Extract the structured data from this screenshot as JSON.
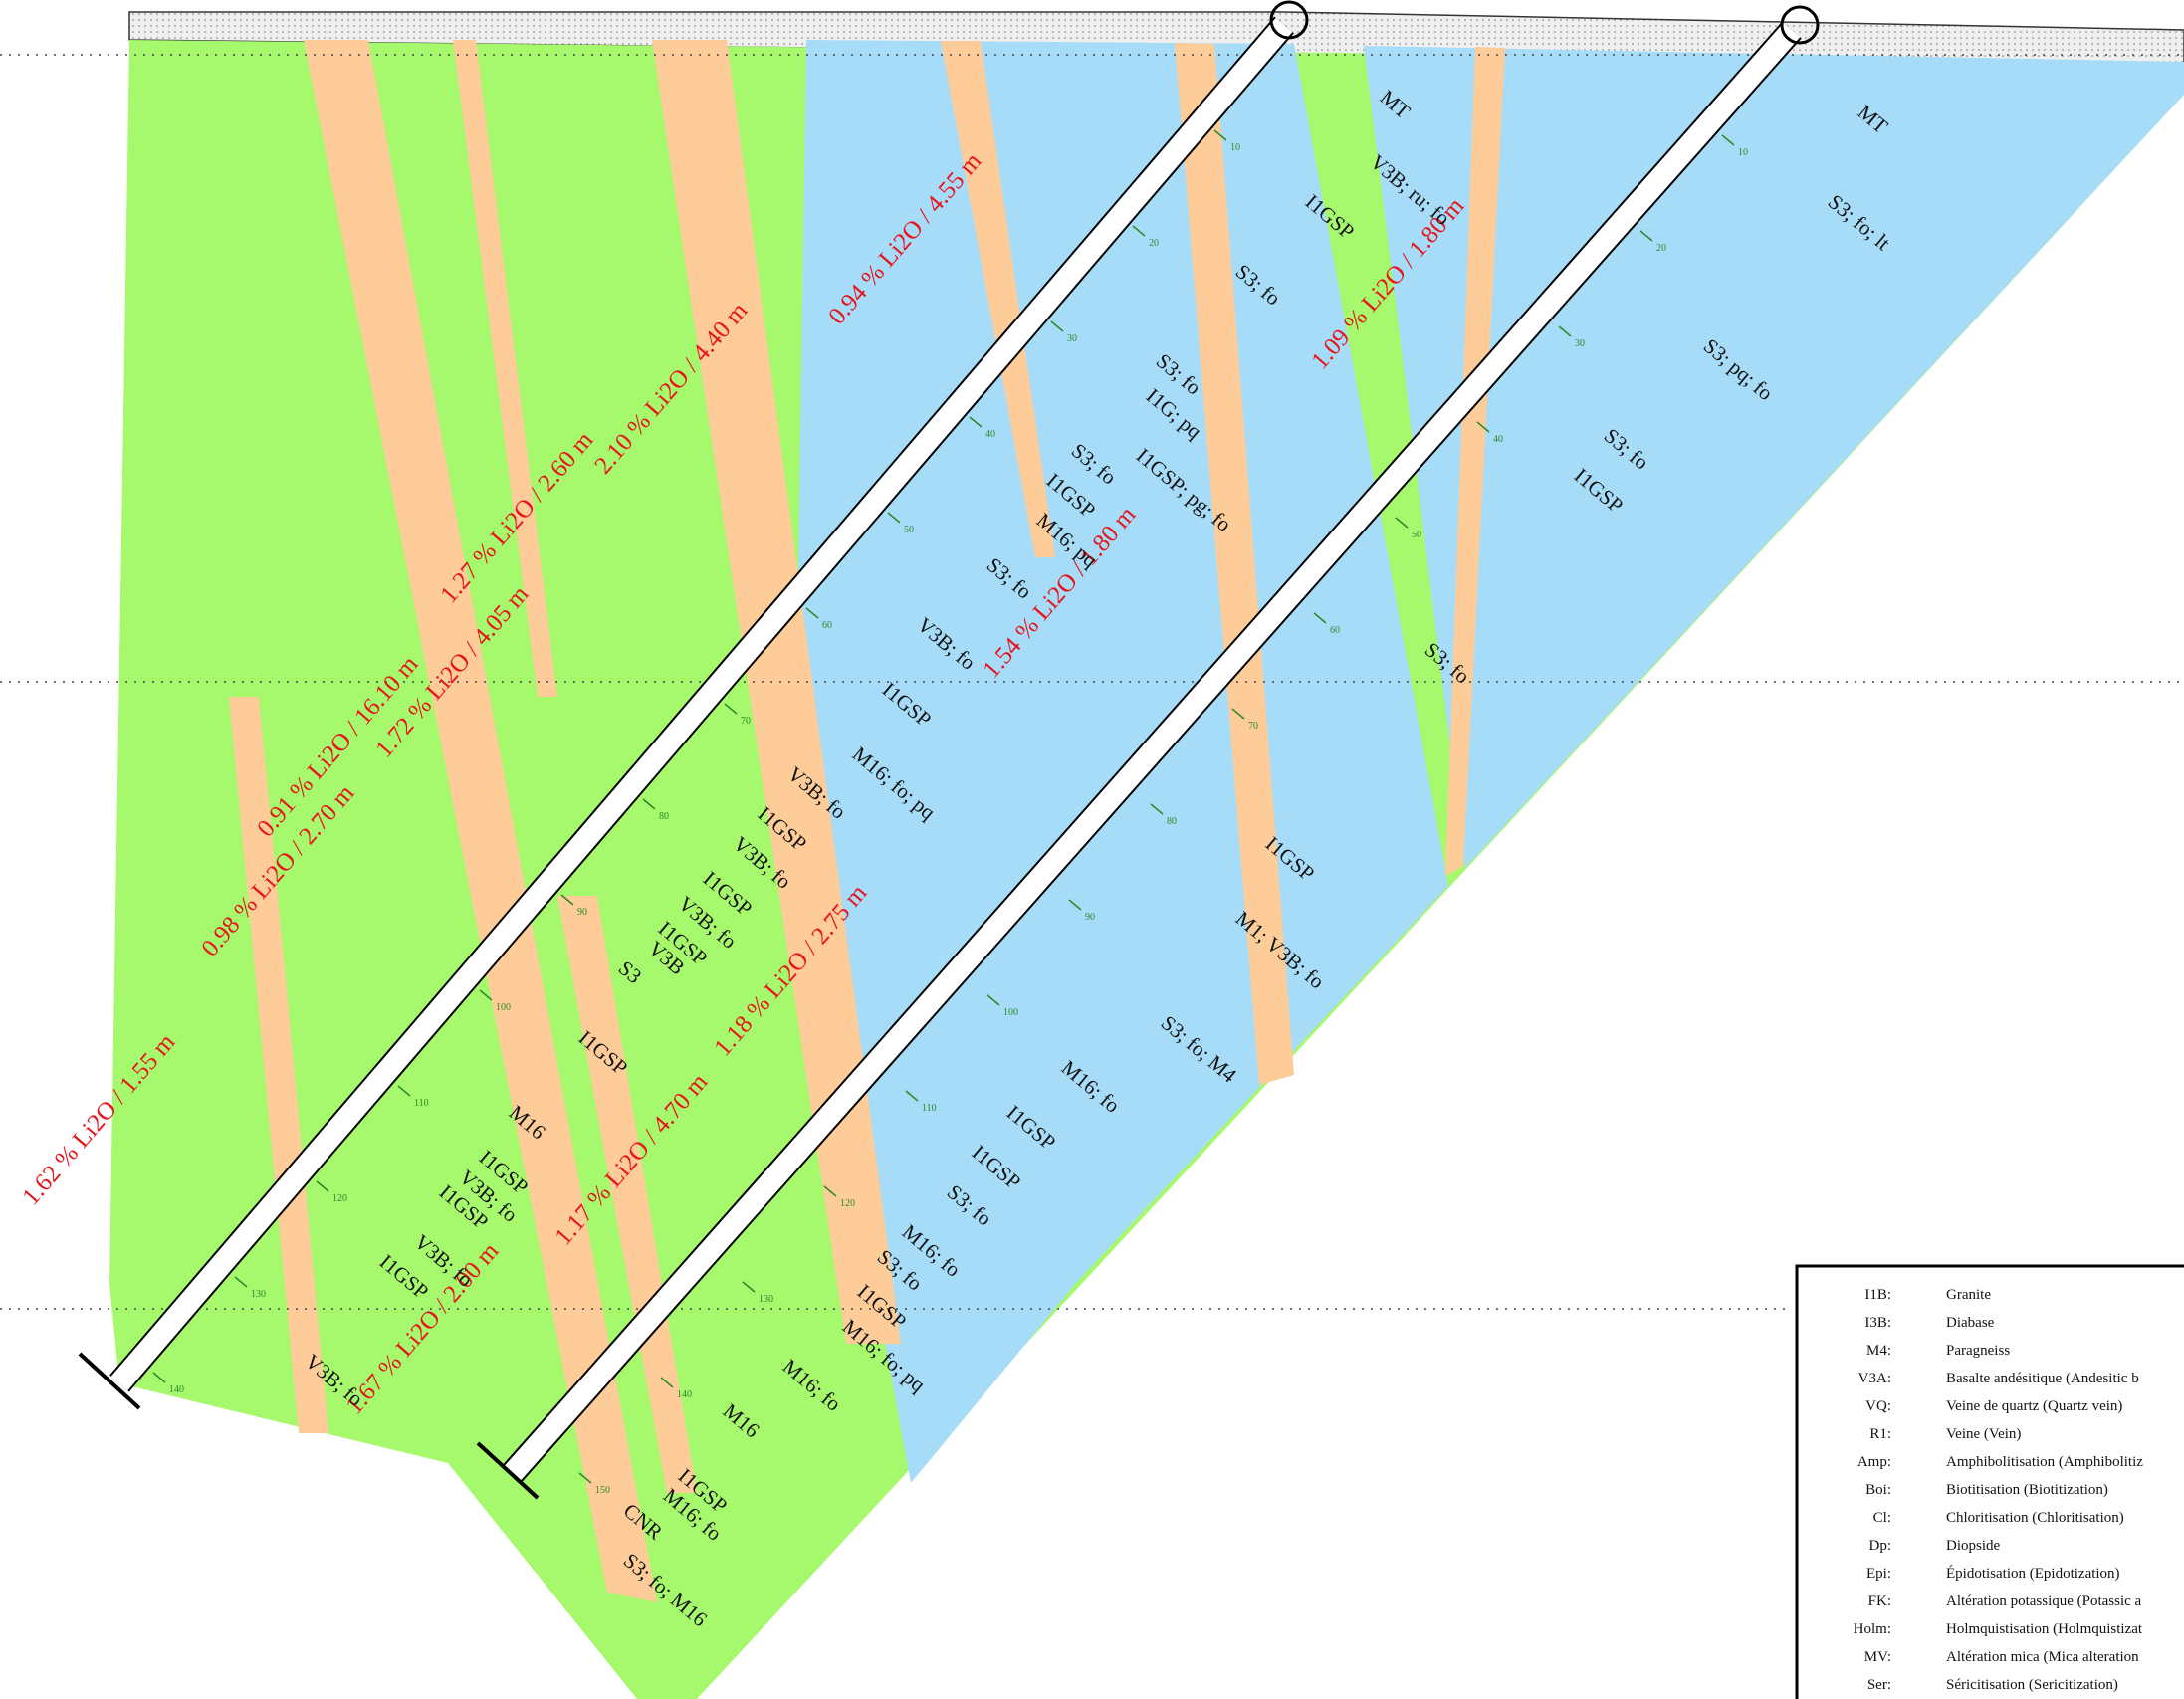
{
  "section": {
    "intercepts": [
      "0.94 % Li2O / 4.55 m",
      "1.09 % Li2O / 1.80 m",
      "2.10 % Li2O / 4.40 m",
      "1.27 % Li2O / 2.60 m",
      "1.54 % Li2O / 1.80 m",
      "1.72 % Li2O / 4.05 m",
      "0.91 % Li2O / 16.10 m",
      "0.98 % Li2O / 2.70 m",
      "1.18 % Li2O / 2.75 m",
      "1.17 % Li2O / 4.70 m",
      "1.62 % Li2O / 1.55 m",
      "1.67 % Li2O / 2.00 m"
    ],
    "units": [
      "MT",
      "V3B; ru; fo",
      "I1GSP",
      "S3; fo",
      "S3; fo",
      "I1G; pq",
      "I1GSP; pg; fo",
      "S3; fo",
      "I1GSP",
      "M16; pq",
      "S3; fo",
      "V3B; fo",
      "I1GSP",
      "M16; fo; pq",
      "V3B; fo",
      "I1GSP",
      "V3B; fo",
      "I1GSP",
      "V3B; fo",
      "I1GSP",
      "V3B",
      "S3",
      "I1GSP",
      "M16",
      "I1GSP",
      "V3B; fo",
      "I1GSP",
      "V3B; fo",
      "I1GSP",
      "V3B; fo",
      "MT",
      "S3; fo; lt",
      "S3; pq; fo",
      "S3; fo",
      "I1GSP",
      "S3; fo",
      "I1GSP",
      "M1; V3B; fo",
      "S3; fo; M4",
      "M16; fo",
      "I1GSP",
      "I1GSP",
      "S3; fo",
      "M16; fo",
      "S3; fo",
      "I1GSP",
      "M16; fo; pq",
      "M16; fo",
      "M16",
      "I1GSP",
      "M16; fo",
      "CNR",
      "S3; fo; M16"
    ],
    "holes": [
      {
        "depth_ticks": [
          10,
          20,
          30,
          40,
          50,
          60,
          70,
          80,
          90,
          100,
          110,
          120,
          130,
          140
        ]
      },
      {
        "depth_ticks": [
          10,
          20,
          30,
          40,
          50,
          60,
          70,
          80,
          90,
          100,
          110,
          120,
          130,
          140,
          150
        ]
      }
    ]
  },
  "legend": [
    {
      "code": "I1B:",
      "text": "Granite"
    },
    {
      "code": "I3B:",
      "text": "Diabase"
    },
    {
      "code": "M4:",
      "text": "Paragneiss"
    },
    {
      "code": "V3A:",
      "text": "Basalte andésitique (Andesitic b"
    },
    {
      "code": "VQ:",
      "text": "Veine de quartz (Quartz vein)"
    },
    {
      "code": "R1:",
      "text": "Veine (Vein)"
    },
    {
      "code": "Amp:",
      "text": "Amphibolitisation (Amphibolitiz"
    },
    {
      "code": "Boi:",
      "text": "Biotitisation (Biotitization)"
    },
    {
      "code": "Cl:",
      "text": "Chloritisation (Chloritisation)"
    },
    {
      "code": "Dp:",
      "text": "Diopside"
    },
    {
      "code": "Epi:",
      "text": "Épidotisation (Epidotization)"
    },
    {
      "code": "FK:",
      "text": "Altération potassique (Potassic a"
    },
    {
      "code": "Holm:",
      "text": "Holmquistisation (Holmquistizat"
    },
    {
      "code": "MV:",
      "text": "Altération mica (Mica alteration"
    },
    {
      "code": "Ser:",
      "text": "Séricitisation (Sericitization)"
    }
  ]
}
